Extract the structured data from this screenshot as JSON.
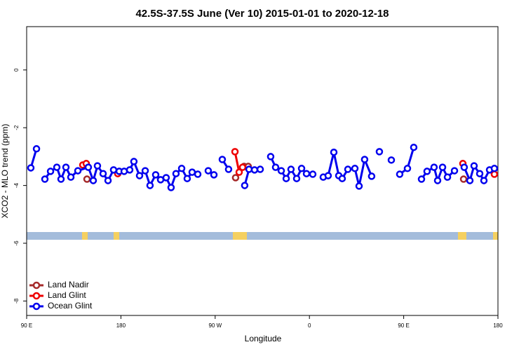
{
  "chart_data": {
    "type": "line",
    "title": "42.5S-37.5S June (Ver 10)   2015-01-01 to 2020-12-18",
    "xlabel": "Longitude",
    "ylabel": "XCO2 - MLO trend (ppm)",
    "xlim": [
      90,
      540
    ],
    "ylim": [
      -8.5,
      1.5
    ],
    "xticks": [
      {
        "value": 90,
        "label": "90 E"
      },
      180,
      {
        "value": 270,
        "label": "90 W"
      },
      {
        "value": 360,
        "label": "0"
      },
      {
        "value": 450,
        "label": "90 E"
      },
      {
        "value": 540,
        "label": "180"
      }
    ],
    "yticks": [
      0,
      -2,
      -4,
      -6,
      -8
    ],
    "legend": "bottom-left",
    "series": [
      {
        "name": "Land Nadir",
        "color": "#a52a2a",
        "x": [
          147.6,
          null,
          289.5,
          297.6,
          301.6,
          null,
          507.2
        ],
        "values": [
          -3.78,
          null,
          -3.73,
          -3.34,
          -3.34,
          null,
          -3.78
        ]
      },
      {
        "name": "Land Glint",
        "color": "#ee0000",
        "x": [
          143.6,
          146.9,
          null,
          177.0,
          null,
          288.9,
          292.9,
          296.2,
          null,
          506.5,
          null,
          536.6
        ],
        "values": [
          -3.29,
          -3.24,
          null,
          -3.59,
          null,
          -2.83,
          -3.54,
          -3.37,
          null,
          -3.24,
          null,
          -3.61
        ]
      },
      {
        "name": "Ocean Glint",
        "color": "#0000ee",
        "x": [
          94.0,
          99.4,
          null,
          107.4,
          112.8,
          118.8,
          122.8,
          127.5,
          132.2,
          138.9,
          148.9,
          153.6,
          157.6,
          163.0,
          167.7,
          173.0,
          178.4,
          183.1,
          188.4,
          192.4,
          197.8,
          203.2,
          207.8,
          213.2,
          217.9,
          223.2,
          227.9,
          232.6,
          238.0,
          243.3,
          248.0,
          253.4,
          null,
          263.4,
          268.8,
          null,
          276.8,
          282.8,
          null,
          298.2,
          302.3,
          307.6,
          313.0,
          null,
          323.0,
          327.7,
          333.1,
          337.8,
          342.4,
          347.8,
          352.5,
          357.2,
          363.2,
          null,
          373.2,
          377.9,
          383.3,
          388.0,
          391.3,
          396.7,
          403.4,
          407.4,
          412.7,
          419.4,
          null,
          426.8,
          null,
          438.2,
          null,
          446.2,
          453.6,
          459.6,
          null,
          467.0,
          472.3,
          479.0,
          482.4,
          487.1,
          491.8,
          498.5,
          null,
          507.8,
          513.2,
          517.2,
          522.6,
          526.6,
          532.0,
          536.6
        ],
        "values": [
          -3.39,
          -2.73,
          null,
          -3.78,
          -3.51,
          -3.37,
          -3.78,
          -3.37,
          -3.71,
          -3.49,
          -3.37,
          -3.83,
          -3.32,
          -3.59,
          -3.83,
          -3.46,
          -3.51,
          -3.51,
          -3.46,
          -3.17,
          -3.66,
          -3.49,
          -4.0,
          -3.63,
          -3.8,
          -3.73,
          -4.07,
          -3.59,
          -3.41,
          -3.76,
          -3.54,
          -3.61,
          null,
          -3.49,
          -3.63,
          null,
          -3.1,
          -3.44,
          null,
          -4.0,
          -3.44,
          -3.46,
          -3.44,
          null,
          -3.0,
          -3.37,
          -3.49,
          -3.76,
          -3.44,
          -3.76,
          -3.41,
          -3.59,
          -3.61,
          null,
          -3.71,
          -3.66,
          -2.85,
          -3.66,
          -3.76,
          -3.44,
          -3.41,
          -4.02,
          -3.1,
          -3.68,
          null,
          -2.83,
          null,
          -3.12,
          null,
          -3.61,
          -3.41,
          -2.68,
          null,
          -3.78,
          -3.51,
          -3.37,
          -3.83,
          -3.37,
          -3.71,
          -3.49,
          null,
          -3.37,
          -3.83,
          -3.32,
          -3.59,
          -3.83,
          -3.46,
          -3.41
        ]
      }
    ]
  }
}
